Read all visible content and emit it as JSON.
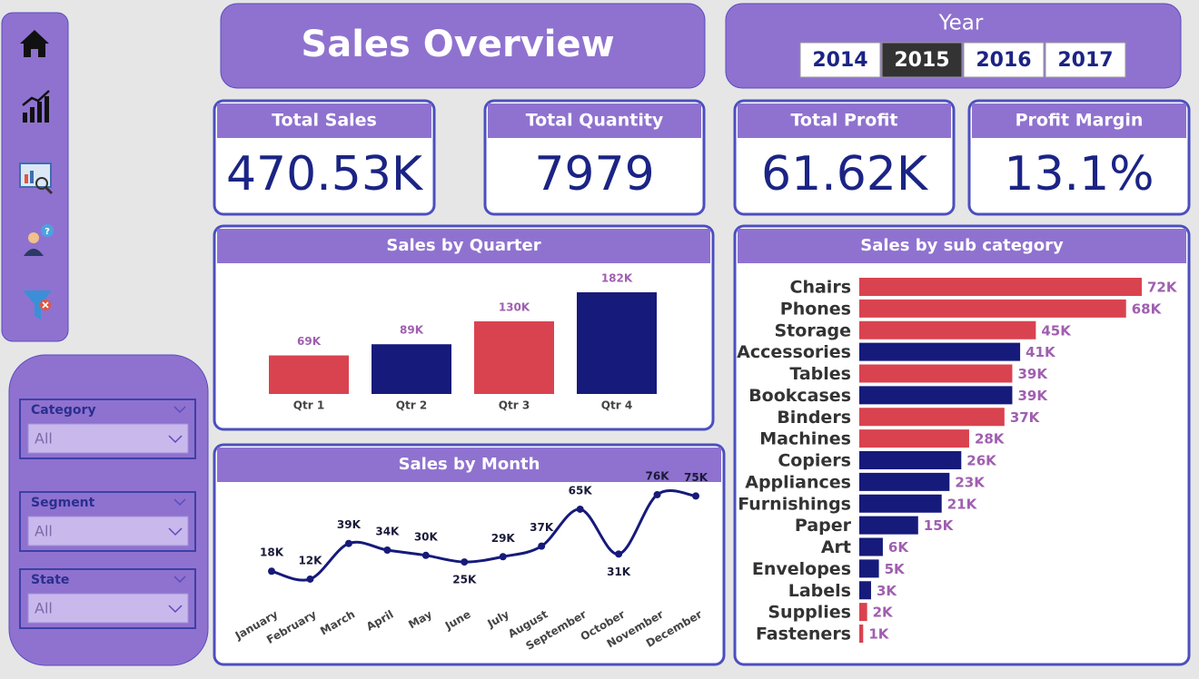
{
  "header": {
    "title": "Sales Overview"
  },
  "year_slicer": {
    "label": "Year",
    "options": [
      "2014",
      "2015",
      "2016",
      "2017"
    ],
    "selected": "2015"
  },
  "kpis": [
    {
      "label": "Total Sales",
      "value": "470.53K"
    },
    {
      "label": "Total Quantity",
      "value": "7979"
    },
    {
      "label": "Total Profit",
      "value": "61.62K"
    },
    {
      "label": "Profit Margin",
      "value": "13.1%"
    }
  ],
  "filters": [
    {
      "label": "Category",
      "value": "All"
    },
    {
      "label": "Segment",
      "value": "All"
    },
    {
      "label": "State",
      "value": "All"
    }
  ],
  "chart_data": [
    {
      "type": "bar",
      "title": "Sales by Quarter",
      "categories": [
        "Qtr 1",
        "Qtr 2",
        "Qtr 3",
        "Qtr 4"
      ],
      "values": [
        69,
        89,
        130,
        182
      ],
      "value_labels": [
        "69K",
        "89K",
        "130K",
        "182K"
      ],
      "colors": [
        "#d9434f",
        "#161a7a",
        "#d9434f",
        "#161a7a"
      ]
    },
    {
      "type": "line",
      "title": "Sales by Month",
      "categories": [
        "January",
        "February",
        "March",
        "April",
        "May",
        "June",
        "July",
        "August",
        "September",
        "October",
        "November",
        "December"
      ],
      "values": [
        18,
        12,
        39,
        34,
        30,
        25,
        29,
        37,
        65,
        31,
        76,
        75
      ],
      "value_labels": [
        "18K",
        "12K",
        "39K",
        "34K",
        "30K",
        "25K",
        "29K",
        "37K",
        "65K",
        "31K",
        "76K",
        "75K"
      ],
      "color": "#161a7a"
    },
    {
      "type": "barh",
      "title": "Sales by sub category",
      "categories": [
        "Chairs",
        "Phones",
        "Storage",
        "Accessories",
        "Tables",
        "Bookcases",
        "Binders",
        "Machines",
        "Copiers",
        "Appliances",
        "Furnishings",
        "Paper",
        "Art",
        "Envelopes",
        "Labels",
        "Supplies",
        "Fasteners"
      ],
      "values": [
        72,
        68,
        45,
        41,
        39,
        39,
        37,
        28,
        26,
        23,
        21,
        15,
        6,
        5,
        3,
        2,
        1
      ],
      "value_labels": [
        "72K",
        "68K",
        "45K",
        "41K",
        "39K",
        "39K",
        "37K",
        "28K",
        "26K",
        "23K",
        "21K",
        "15K",
        "6K",
        "5K",
        "3K",
        "2K",
        "1K"
      ],
      "colors": [
        "#d9434f",
        "#d9434f",
        "#d9434f",
        "#161a7a",
        "#d9434f",
        "#161a7a",
        "#d9434f",
        "#d9434f",
        "#161a7a",
        "#161a7a",
        "#161a7a",
        "#161a7a",
        "#161a7a",
        "#161a7a",
        "#161a7a",
        "#d9434f",
        "#d9434f"
      ]
    }
  ]
}
